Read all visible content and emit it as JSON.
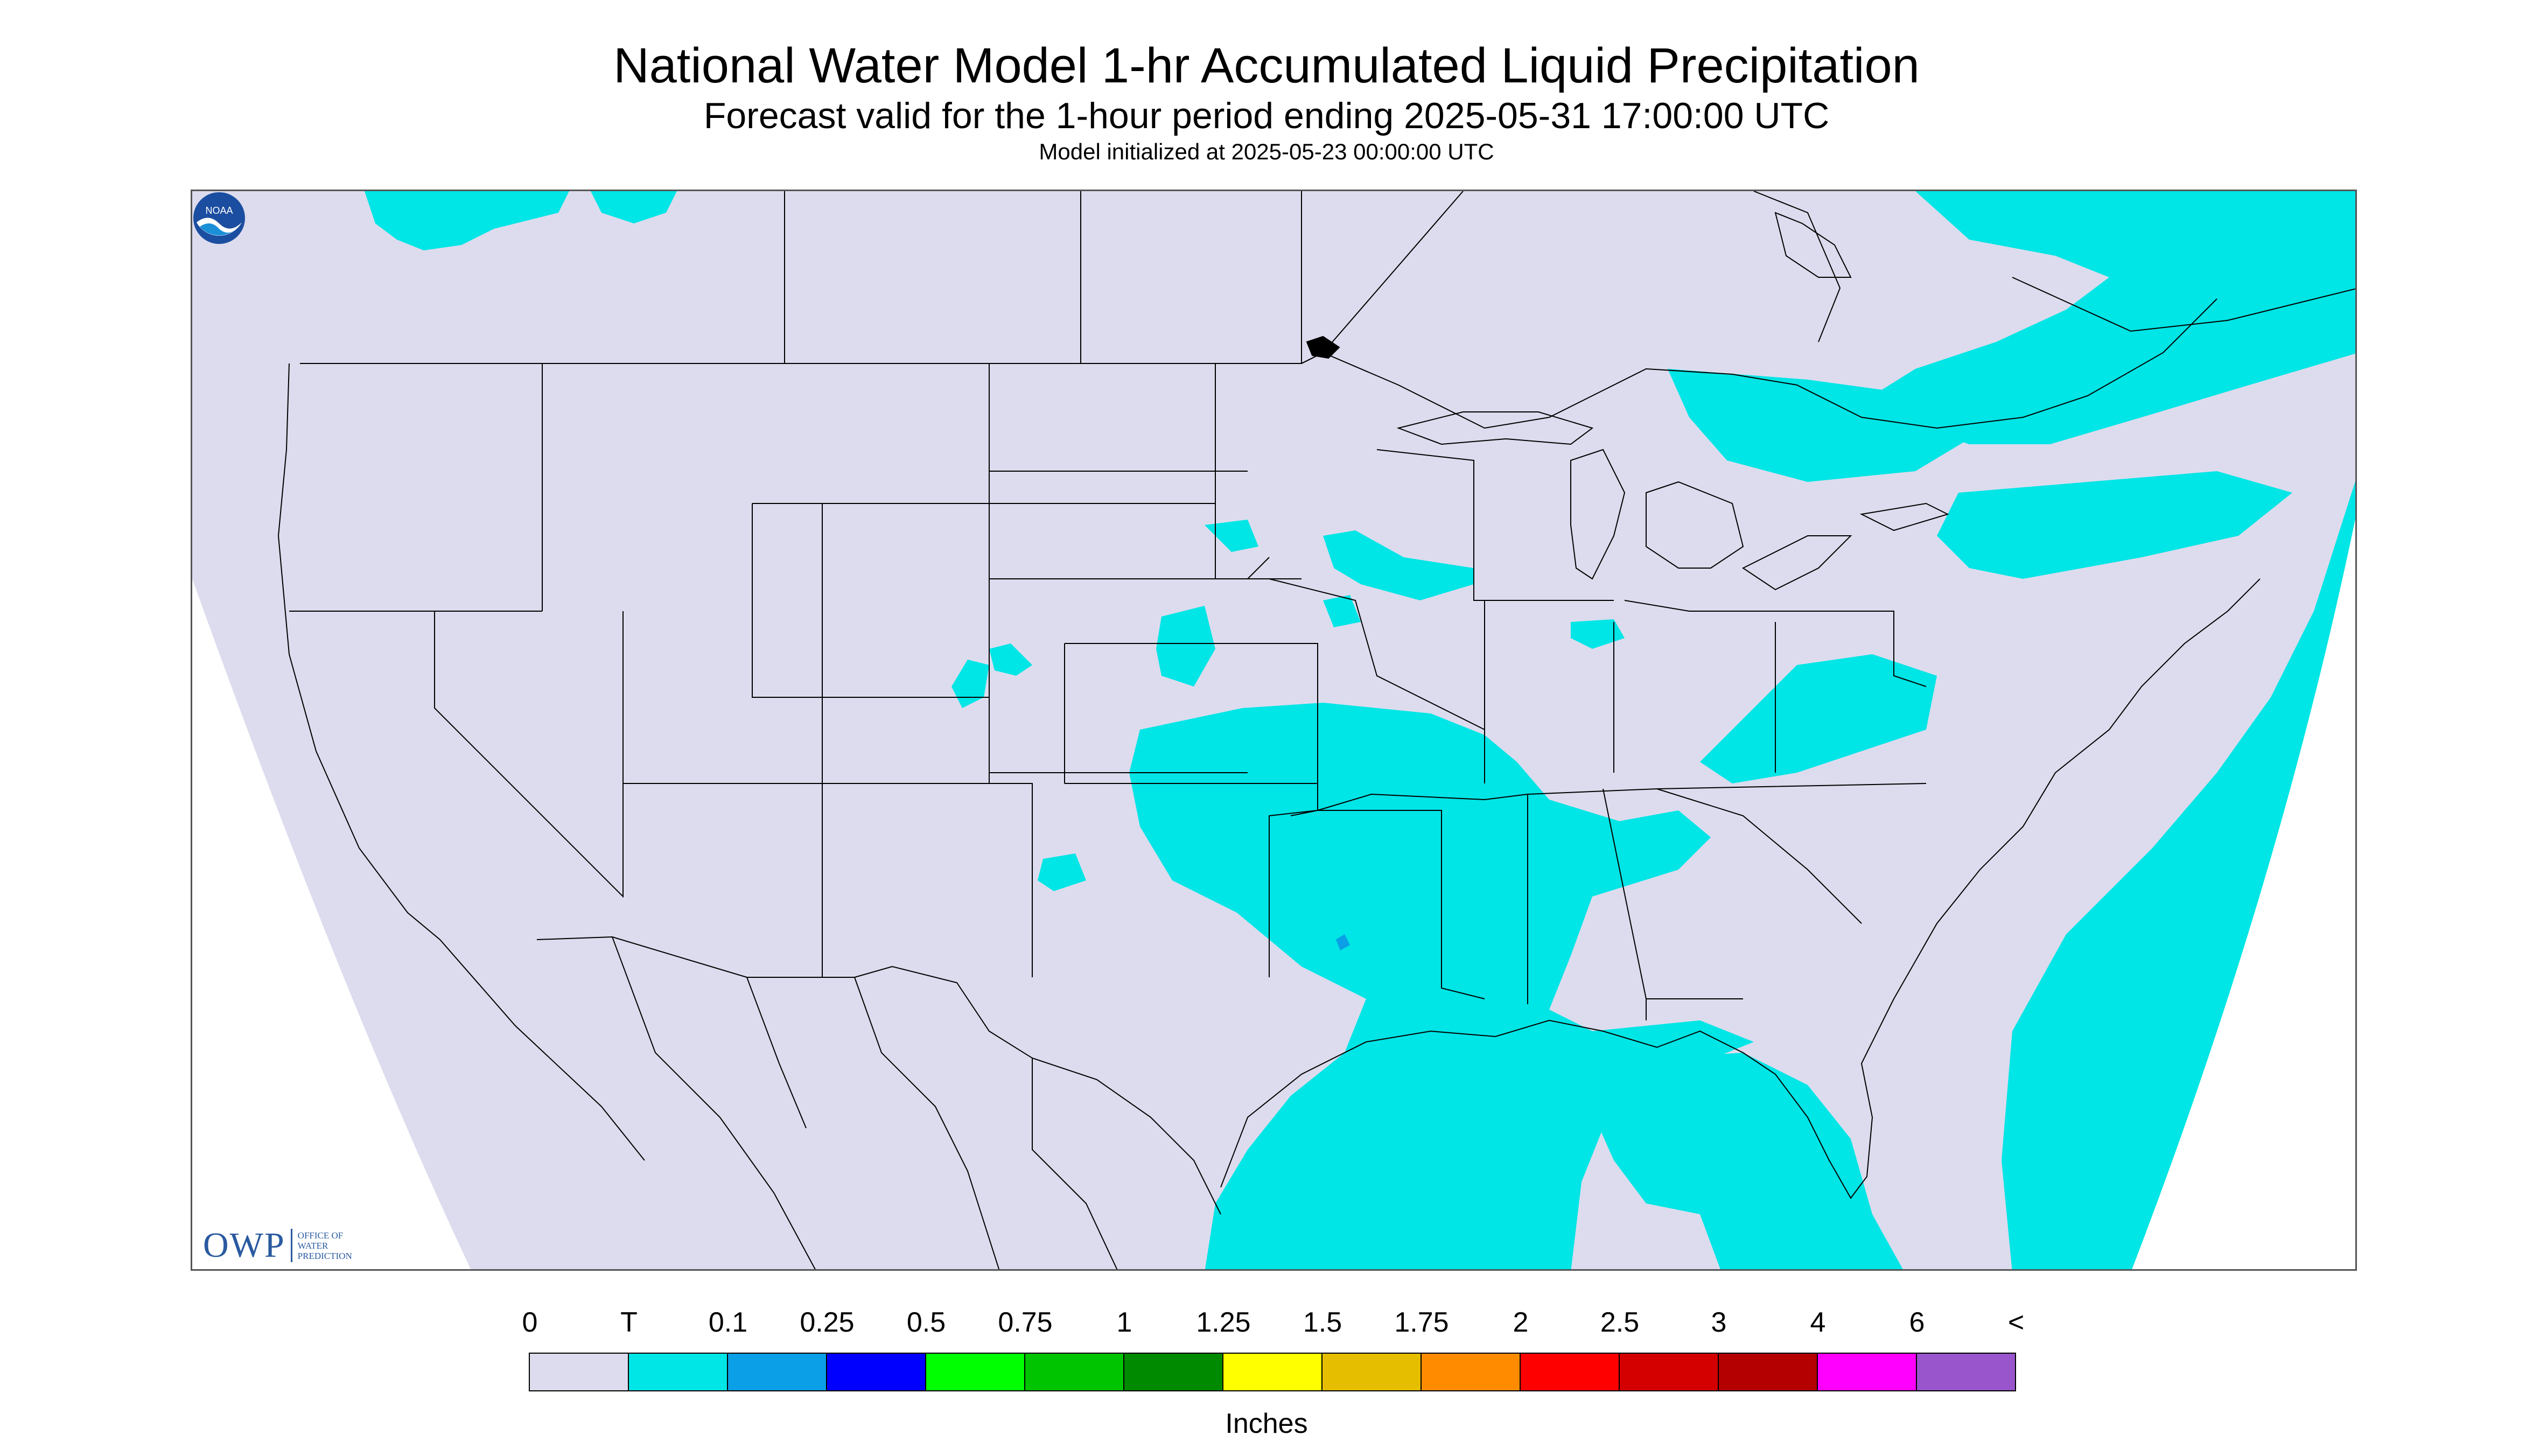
{
  "title": "National Water Model 1-hr Accumulated Liquid Precipitation",
  "subtitle": "Forecast valid for the 1-hour period ending 2025-05-31 17:00:00 UTC",
  "init_text": "Model initialized at 2025-05-23 00:00:00 UTC",
  "logos": {
    "owp_mark": "OWP",
    "owp_text": [
      "OFFICE OF",
      "WATER",
      "PREDICTION"
    ],
    "noaa_text": "NOAA"
  },
  "colors": {
    "background_outside": "#dcdcee",
    "precip_trace": "#00e5e5",
    "precip_01": "#0a9fe6",
    "boundaries": "#000000"
  },
  "legend": {
    "units": "Inches",
    "tick_labels": [
      "0",
      "T",
      "0.1",
      "0.25",
      "0.5",
      "0.75",
      "1",
      "1.25",
      "1.5",
      "1.75",
      "2",
      "2.5",
      "3",
      "4",
      "6",
      "<"
    ],
    "colors": [
      "#dcdcee",
      "#00e5e5",
      "#0a9fe6",
      "#0000ff",
      "#00ff00",
      "#00c400",
      "#008a00",
      "#ffff00",
      "#e6be00",
      "#ff8c00",
      "#ff0000",
      "#d40000",
      "#b40000",
      "#ff00ff",
      "#9955cc"
    ]
  }
}
